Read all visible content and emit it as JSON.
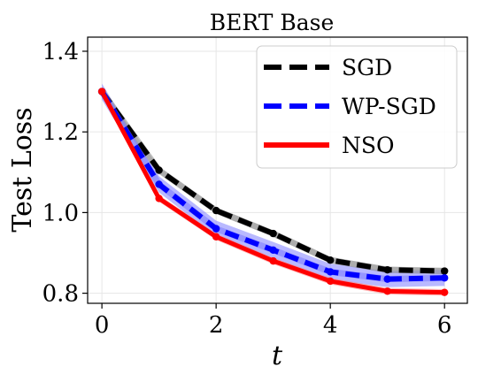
{
  "chart_data": {
    "type": "line",
    "title": "BERT Base",
    "xlabel": "t",
    "ylabel": "Test Loss",
    "x": [
      0,
      1,
      2,
      3,
      4,
      5,
      6
    ],
    "xticks": [
      0,
      2,
      4,
      6
    ],
    "xtick_labels": [
      "0",
      "2",
      "4",
      "6"
    ],
    "yticks": [
      0.8,
      1.0,
      1.2,
      1.4
    ],
    "ytick_labels": [
      "0.8",
      "1.0",
      "1.2",
      "1.4"
    ],
    "xlim": [
      -0.25,
      6.4
    ],
    "ylim": [
      0.775,
      1.435
    ],
    "grid": true,
    "legend_position": "top-right",
    "series": [
      {
        "name": "SGD",
        "values": [
          1.3,
          1.105,
          1.005,
          0.948,
          0.882,
          0.858,
          0.855
        ],
        "band": 0.008,
        "color": "#000000",
        "band_color": "#9a9a9a",
        "dash": "dashed"
      },
      {
        "name": "WP-SGD",
        "values": [
          1.3,
          1.07,
          0.96,
          0.907,
          0.853,
          0.835,
          0.838
        ],
        "band": 0.02,
        "color": "#0000ff",
        "band_color": "#7f7fff",
        "dash": "dashed"
      },
      {
        "name": "NSO",
        "values": [
          1.3,
          1.035,
          0.94,
          0.88,
          0.83,
          0.805,
          0.802
        ],
        "band": 0.008,
        "color": "#ff0000",
        "band_color": "#ff7f7f",
        "dash": "solid"
      }
    ]
  }
}
